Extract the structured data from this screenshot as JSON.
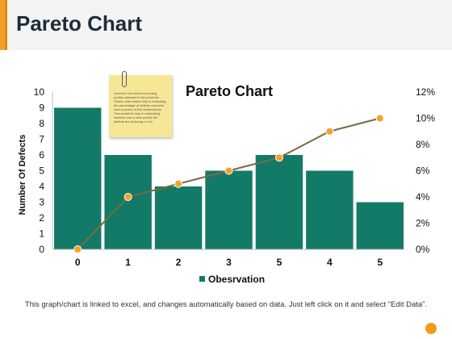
{
  "slide": {
    "title": "Pareto Chart",
    "note": "common tool used in ensuring quality standard in the products. Pareto chart would help in indicating the percentage of defects occurred over a period of few observations. This would be help in estimating whether over a time period the defects are reducing or not.",
    "footer": "This graph/chart is linked to excel, and changes automatically based on data. Just left click on it and select \"Edit Data\"."
  },
  "chart_data": {
    "type": "bar",
    "title": "Pareto Chart",
    "categories": [
      "0",
      "1",
      "2",
      "3",
      "5",
      "4",
      "5"
    ],
    "ylabel": "Number Of Defects",
    "xlabel": "",
    "ylim": [
      0,
      10
    ],
    "y_ticks": [
      "0",
      "1",
      "2",
      "3",
      "4",
      "5",
      "6",
      "7",
      "8",
      "9",
      "10"
    ],
    "y2lim": [
      0,
      12
    ],
    "y2_ticks": [
      "0%",
      "2%",
      "4%",
      "6%",
      "8%",
      "10%",
      "12%"
    ],
    "series": [
      {
        "name": "Obesrvation",
        "type": "bar",
        "values": [
          9,
          6,
          4,
          5,
          6,
          5,
          3
        ]
      },
      {
        "type": "line",
        "axis": "secondary",
        "values": [
          0,
          4,
          5,
          6,
          7,
          9,
          10
        ]
      }
    ],
    "legend": "bottom",
    "colors": {
      "bar": "#137a67",
      "line": "#7a6a40",
      "marker": "#f5a02a",
      "header_accent": "#f0a02c"
    }
  }
}
